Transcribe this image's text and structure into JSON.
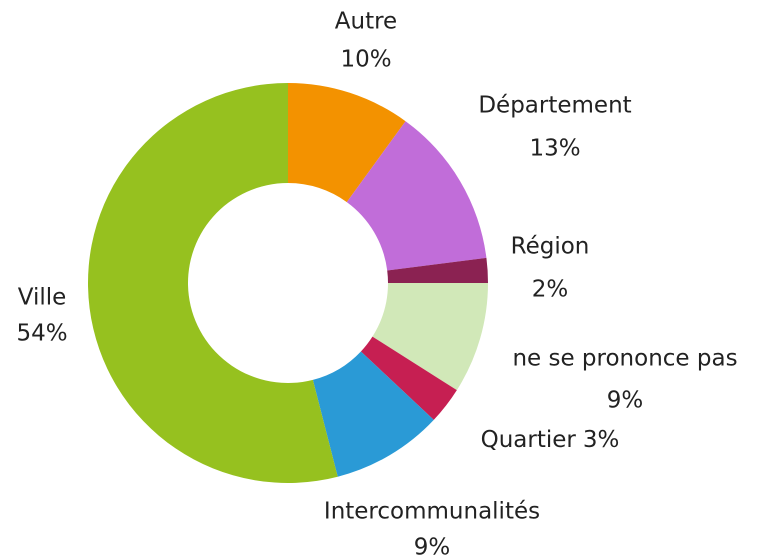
{
  "chart_data": {
    "type": "donut",
    "categories": [
      "Autre",
      "Département",
      "Région",
      "ne se prononce pas",
      "Quartier",
      "Intercommunalités",
      "Ville"
    ],
    "values": [
      10,
      13,
      2,
      9,
      3,
      9,
      54
    ],
    "value_labels": [
      "10%",
      "13%",
      "2%",
      "9%",
      "3%",
      "9%",
      "54%"
    ],
    "colors": [
      "#f39200",
      "#c16dd9",
      "#8b2252",
      "#d1e8b8",
      "#c61f52",
      "#2a9ad6",
      "#96c11f"
    ]
  }
}
